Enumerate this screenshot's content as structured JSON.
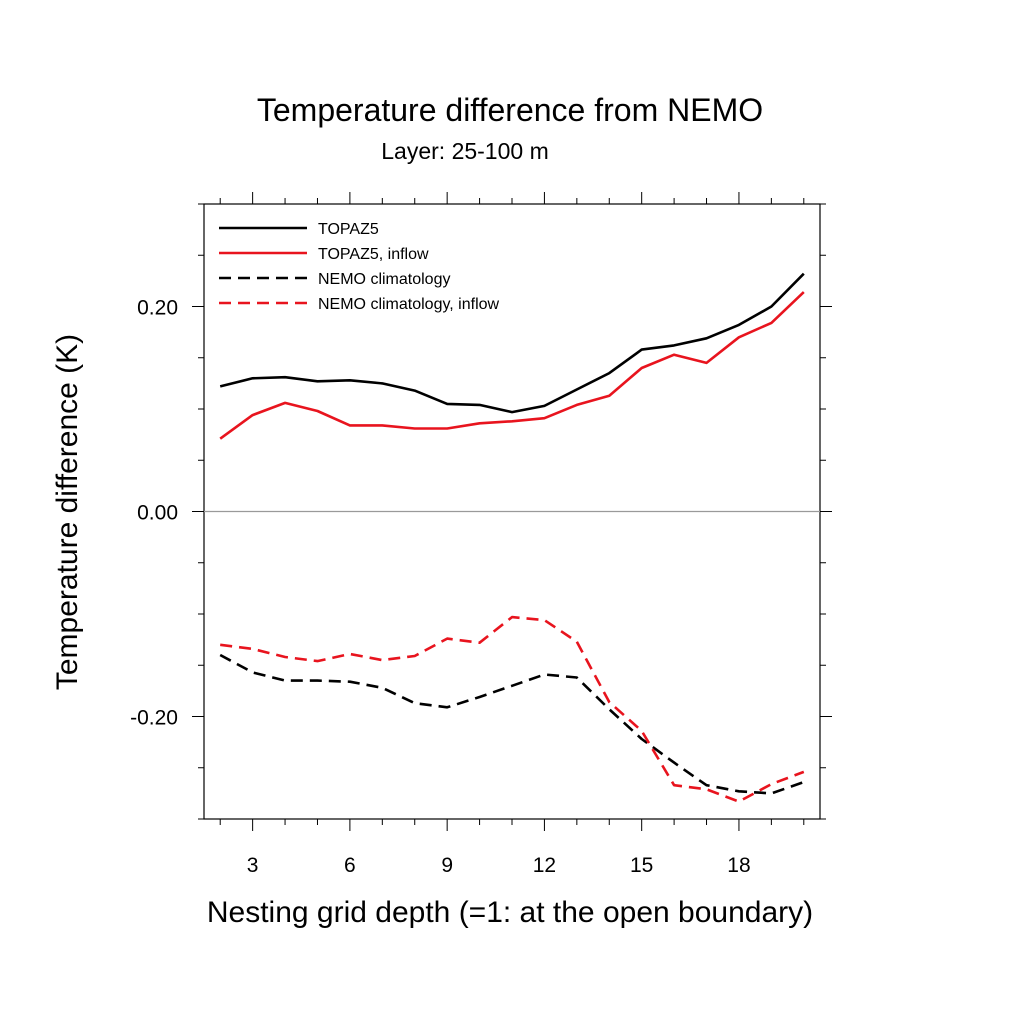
{
  "chart_data": {
    "type": "line",
    "title": "Temperature difference from NEMO",
    "subtitle": "Layer: 25-100 m",
    "xlabel": "Nesting grid depth (=1: at the open boundary)",
    "ylabel": "Temperature difference (K)",
    "xlim": [
      1.5,
      20.5
    ],
    "ylim": [
      -0.3,
      0.3
    ],
    "xticks": [
      3,
      6,
      9,
      12,
      15,
      18
    ],
    "xtick_labels": [
      "3",
      "6",
      "9",
      "12",
      "15",
      "18"
    ],
    "yticks": [
      -0.2,
      0.0,
      0.2
    ],
    "ytick_labels": [
      "-0.20",
      "0.00",
      "0.20"
    ],
    "x": [
      2,
      3,
      4,
      5,
      6,
      7,
      8,
      9,
      10,
      11,
      12,
      13,
      14,
      15,
      16,
      17,
      18,
      19,
      20
    ],
    "grid": false,
    "zero_line": true,
    "legend_position": "top-left",
    "series": [
      {
        "name": "TOPAZ5",
        "color": "#000000",
        "dash": "solid",
        "values": [
          0.122,
          0.13,
          0.131,
          0.127,
          0.128,
          0.125,
          0.118,
          0.105,
          0.104,
          0.097,
          0.103,
          0.119,
          0.135,
          0.158,
          0.162,
          0.169,
          0.182,
          0.2,
          0.232
        ]
      },
      {
        "name": "TOPAZ5, inflow",
        "color": "#e8141e",
        "dash": "solid",
        "values": [
          0.071,
          0.094,
          0.106,
          0.098,
          0.084,
          0.084,
          0.081,
          0.081,
          0.086,
          0.088,
          0.091,
          0.104,
          0.113,
          0.14,
          0.153,
          0.145,
          0.17,
          0.184,
          0.214
        ]
      },
      {
        "name": "NEMO climatology",
        "color": "#000000",
        "dash": "dashed",
        "values": [
          -0.14,
          -0.157,
          -0.165,
          -0.165,
          -0.166,
          -0.172,
          -0.187,
          -0.191,
          -0.181,
          -0.17,
          -0.159,
          -0.162,
          -0.193,
          -0.222,
          -0.245,
          -0.267,
          -0.273,
          -0.275,
          -0.264
        ]
      },
      {
        "name": "NEMO climatology, inflow",
        "color": "#e8141e",
        "dash": "dashed",
        "values": [
          -0.13,
          -0.134,
          -0.142,
          -0.146,
          -0.139,
          -0.145,
          -0.141,
          -0.124,
          -0.128,
          -0.103,
          -0.106,
          -0.127,
          -0.186,
          -0.214,
          -0.267,
          -0.271,
          -0.283,
          -0.266,
          -0.254
        ]
      }
    ]
  }
}
